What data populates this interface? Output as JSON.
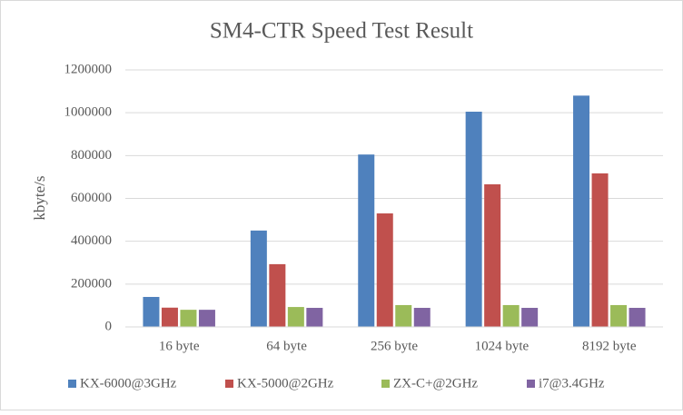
{
  "chart_data": {
    "type": "bar",
    "title": "SM4-CTR Speed Test Result",
    "y_label": "kbyte/s",
    "categories": [
      "16 byte",
      "64 byte",
      "256 byte",
      "1024 byte",
      "8192 byte"
    ],
    "series": [
      {
        "name": "KX-6000@3GHz",
        "color": "#4f81bd",
        "values": [
          140000,
          450000,
          805000,
          1005000,
          1080000
        ]
      },
      {
        "name": "KX-5000@2GHz",
        "color": "#c0504d",
        "values": [
          90000,
          293000,
          530000,
          666000,
          717000
        ]
      },
      {
        "name": "ZX-C+@2GHz",
        "color": "#9bbb59",
        "values": [
          80000,
          93000,
          102000,
          102000,
          102000
        ]
      },
      {
        "name": "i7@3.4GHz",
        "color": "#8064a2",
        "values": [
          80000,
          89000,
          89000,
          89000,
          89000
        ]
      }
    ],
    "ylim": [
      0,
      1200000
    ],
    "yticks": [
      0,
      200000,
      400000,
      600000,
      800000,
      1000000,
      1200000
    ],
    "grid": true,
    "legend": "bottom"
  }
}
